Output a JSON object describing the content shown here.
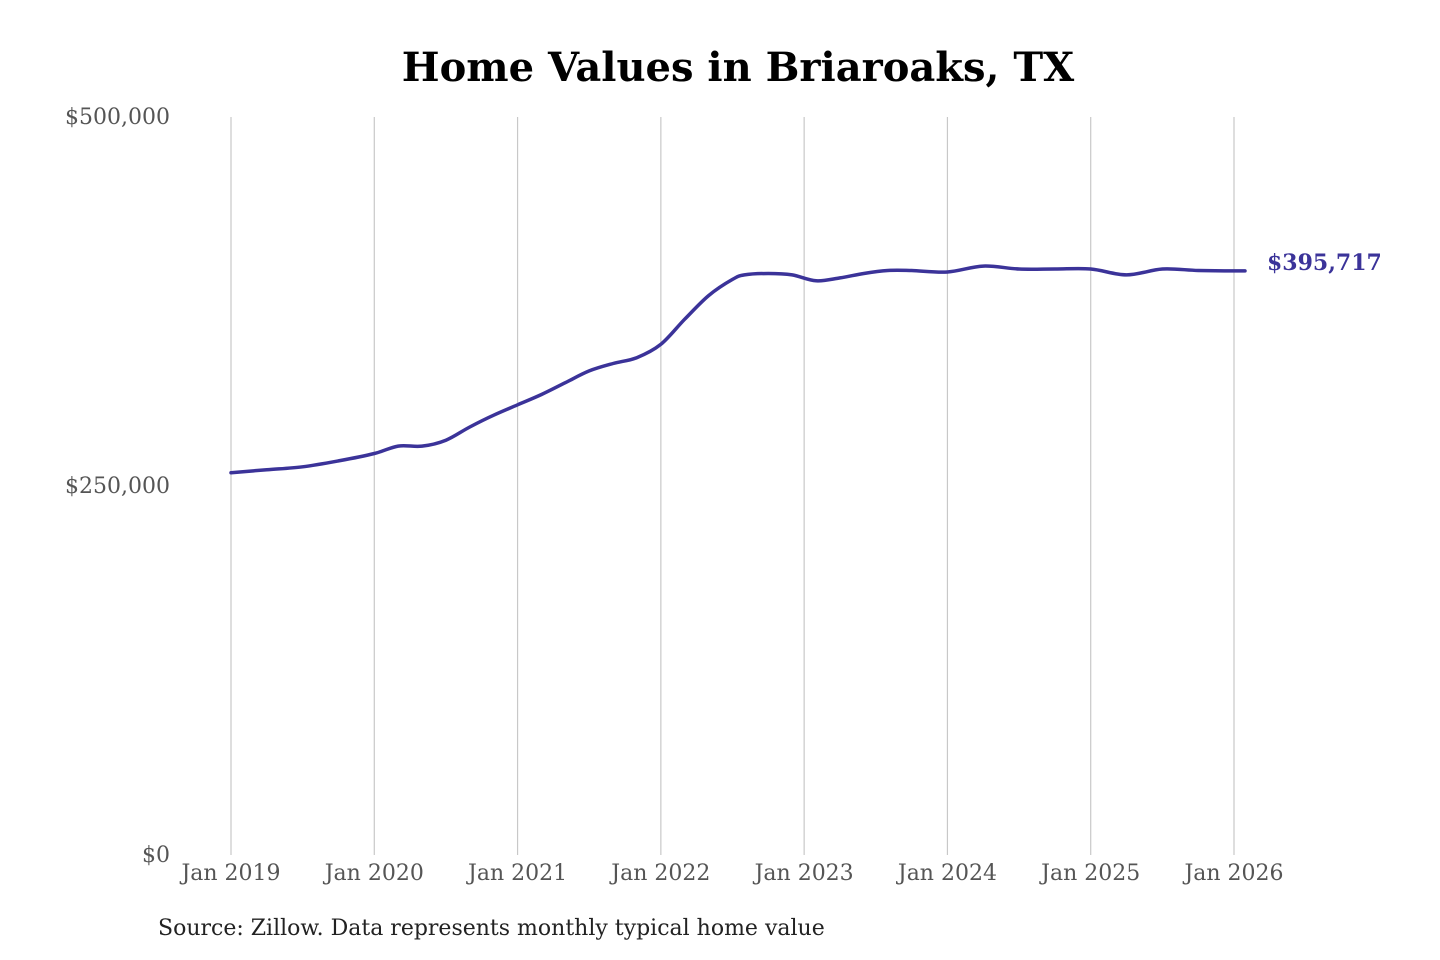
{
  "chart_data": {
    "type": "line",
    "title": "Home Values in Briaroaks, TX",
    "xlabel": "",
    "ylabel": "",
    "x_ticks": [
      "Jan 2019",
      "Jan 2020",
      "Jan 2021",
      "Jan 2022",
      "Jan 2023",
      "Jan 2024",
      "Jan 2025",
      "Jan 2026"
    ],
    "y_ticks": [
      "$0",
      "$250,000",
      "$500,000"
    ],
    "ylim": [
      0,
      500000
    ],
    "xlim": [
      "2019-01",
      "2026-01"
    ],
    "grid": "vertical",
    "line_color": "#3b3399",
    "end_label": "$395,717",
    "series": [
      {
        "x": [
          "2019-01",
          "2019-04",
          "2019-07",
          "2019-10",
          "2020-01",
          "2020-03",
          "2020-05",
          "2020-07",
          "2020-09",
          "2020-11",
          "2021-01",
          "2021-03",
          "2021-05",
          "2021-07",
          "2021-09",
          "2021-11",
          "2022-01",
          "2022-03",
          "2022-05",
          "2022-07",
          "2022-08",
          "2022-10",
          "2022-12",
          "2023-02",
          "2023-04",
          "2023-06",
          "2023-08",
          "2023-10",
          "2024-01",
          "2024-04",
          "2024-07",
          "2024-10",
          "2025-01",
          "2025-04",
          "2025-07",
          "2025-10",
          "2026-01"
        ],
        "values": [
          259000,
          261000,
          263000,
          267000,
          272000,
          277000,
          277000,
          281000,
          290000,
          298000,
          305000,
          312000,
          320000,
          328000,
          333000,
          337000,
          346000,
          363000,
          379000,
          390000,
          393000,
          394000,
          393000,
          389000,
          391000,
          394000,
          396000,
          396000,
          395000,
          399000,
          397000,
          397000,
          397000,
          393000,
          397000,
          396000,
          395717
        ]
      }
    ]
  },
  "source_note": "Source: Zillow. Data represents monthly typical home value"
}
